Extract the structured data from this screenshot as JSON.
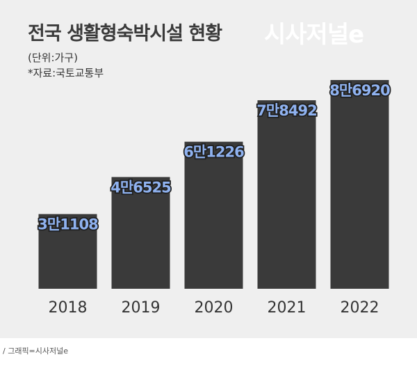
{
  "header": {
    "title": "전국 생활형숙박시설 현황",
    "watermark": "시사저널e",
    "unit": "(단위:가구)",
    "source": "*자료:국토교통부"
  },
  "footer": {
    "credit": "/ 그래픽=시사저널e"
  },
  "colors": {
    "background": "#efefef",
    "bar": "#3a3a3a",
    "label_fill": "#8fb2f0",
    "label_stroke": "#1f1f1f"
  },
  "chart_data": {
    "type": "bar",
    "title": "전국 생활형숙박시설 현황",
    "categories": [
      "2018",
      "2019",
      "2020",
      "2021",
      "2022"
    ],
    "values": [
      31108,
      46525,
      61226,
      78492,
      86920
    ],
    "data_labels": [
      "3만1108",
      "4만6525",
      "6만1226",
      "7만8492",
      "8만6920"
    ],
    "ylabel": "",
    "xlabel": "",
    "ylim": [
      0,
      90000
    ],
    "grid": false,
    "legend": "none"
  }
}
